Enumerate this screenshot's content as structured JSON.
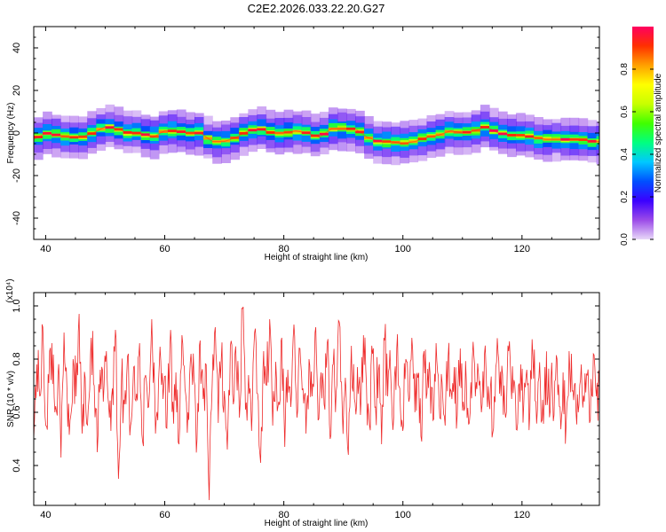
{
  "figure": {
    "title": "C2E2.2026.033.22.20.G27"
  },
  "chart_data": [
    {
      "type": "heatmap",
      "xlabel": "Height of straight line (km)",
      "ylabel": "Frequency (Hz)",
      "xlim": [
        38,
        133
      ],
      "ylim": [
        -50,
        50
      ],
      "xticks": [
        40,
        60,
        80,
        100,
        120
      ],
      "yticks": [
        -40,
        -20,
        0,
        20,
        40
      ],
      "yticklabels": [
        "-40",
        "-20",
        "0",
        "20",
        "40"
      ],
      "ridge": {
        "x": [
          38,
          40,
          42,
          44,
          46,
          48,
          50,
          52,
          54,
          56,
          58,
          60,
          62,
          64,
          66,
          68,
          70,
          72,
          74,
          76,
          78,
          80,
          82,
          84,
          86,
          88,
          90,
          92,
          94,
          96,
          98,
          100,
          102,
          104,
          106,
          108,
          110,
          112,
          114,
          116,
          118,
          120,
          122,
          124,
          126,
          128,
          130,
          132,
          133
        ],
        "y": [
          -3,
          0,
          -1,
          -2,
          -2,
          0,
          3,
          2,
          0,
          0,
          -2,
          1,
          1,
          0,
          0,
          -4,
          -4,
          -2,
          1,
          2,
          0,
          0,
          1,
          0,
          -2,
          2,
          2,
          2,
          -2,
          -4,
          -4,
          -5,
          -4,
          -2,
          -1,
          1,
          0,
          1,
          3,
          0,
          -1,
          -1,
          -2,
          -3,
          -3,
          -3,
          -3,
          -4,
          -4
        ]
      },
      "colorbar": {
        "label": "Normalized spectral amplitude",
        "range": [
          0,
          1
        ],
        "ticks": [
          0.0,
          0.2,
          0.4,
          0.6,
          0.8
        ],
        "ticklabels": [
          "0.0",
          "0.2",
          "0.4",
          "0.6",
          "0.8"
        ],
        "colors": [
          "#e8d8f8",
          "#9b4be8",
          "#3a00ff",
          "#0050ff",
          "#00c8ff",
          "#00ff80",
          "#40ff00",
          "#c8ff00",
          "#ffff00",
          "#ffa000",
          "#ff3000",
          "#ff0060"
        ]
      }
    },
    {
      "type": "line",
      "xlabel": "Height of straight line (km)",
      "ylabel": "SNR (10 * v/v)",
      "yunit": "(x10⁴)",
      "xlim": [
        38,
        133
      ],
      "ylim": [
        0.25,
        1.05
      ],
      "xticks": [
        40,
        60,
        80,
        100,
        120
      ],
      "yticks": [
        0.4,
        0.6,
        0.8,
        1.0
      ],
      "yticklabels": [
        "0.4",
        "0.6",
        "0.8",
        "1.0"
      ],
      "series": [
        {
          "color": "#ee2b2b",
          "x_start": 38,
          "x_end": 133,
          "values": [
            0.5,
            0.78,
            0.66,
            0.92,
            0.55,
            0.71,
            0.86,
            0.6,
            0.74,
            0.43,
            0.9,
            0.68,
            0.57,
            0.8,
            0.66,
            0.97,
            0.52,
            0.73,
            0.61,
            0.88,
            0.7,
            0.45,
            0.76,
            0.64,
            0.83,
            0.58,
            0.69,
            0.91,
            0.35,
            0.72,
            0.63,
            0.81,
            0.55,
            0.77,
            0.67,
            0.86,
            0.49,
            0.74,
            0.62,
            0.95,
            0.66,
            0.57,
            0.79,
            0.7,
            0.54,
            0.84,
            0.64,
            0.75,
            0.48,
            0.89,
            0.69,
            0.6,
            0.82,
            0.72,
            0.5,
            0.87,
            0.65,
            0.78,
            0.27,
            0.71,
            0.92,
            0.56,
            0.8,
            0.68,
            0.46,
            0.85,
            0.63,
            0.77,
            0.58,
            0.99,
            0.61,
            0.74,
            0.53,
            0.9,
            0.67,
            0.41,
            0.83,
            0.7,
            0.95,
            0.55,
            0.79,
            0.64,
            0.88,
            0.47,
            0.76,
            0.62,
            0.93,
            0.58,
            0.84,
            0.69,
            0.52,
            0.8,
            0.66,
            0.9,
            0.57,
            0.75,
            0.63,
            0.86,
            0.5,
            0.78,
            0.68,
            0.94,
            0.6,
            0.73,
            0.44,
            0.85,
            0.65,
            0.77,
            0.59,
            0.89,
            0.7,
            0.55,
            0.82,
            0.62,
            0.76,
            0.48,
            0.87,
            0.66,
            0.74,
            0.58,
            0.84,
            0.69,
            0.53,
            0.8,
            0.64,
            0.88,
            0.6,
            0.73,
            0.51,
            0.83,
            0.67,
            0.75,
            0.57,
            0.86,
            0.63,
            0.71,
            0.55,
            0.81,
            0.68,
            0.77,
            0.59,
            0.84,
            0.64,
            0.72,
            0.56,
            0.8,
            0.66,
            0.75,
            0.6,
            0.82,
            0.62,
            0.7,
            0.54,
            0.79,
            0.67,
            0.74,
            0.58,
            0.83,
            0.65,
            0.71,
            0.56,
            0.78,
            0.63,
            0.76,
            0.6,
            0.81,
            0.64,
            0.73,
            0.57,
            0.77,
            0.66,
            0.72,
            0.59,
            0.8,
            0.62,
            0.75,
            0.55,
            0.83,
            0.68,
            0.71,
            0.6,
            0.78,
            0.64,
            0.74,
            0.57,
            0.82,
            0.66,
            0.7
          ]
        }
      ]
    }
  ]
}
